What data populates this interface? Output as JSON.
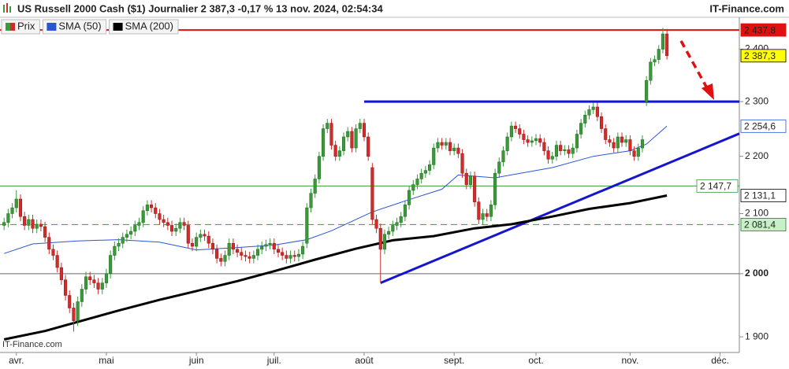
{
  "chart_data": {
    "type": "candlestick",
    "title": "US Russell 2000 Cash ($1) Journalier 2 387,3 -0,17 % 13 nov. 2024, 02:54:34",
    "brand": "IT-Finance.com",
    "watermark": "IT-Finance.com",
    "price_name": "Prix",
    "up_color": "#3a9a3a",
    "down_color": "#d42a2a",
    "last_label": "2 387,3",
    "last_label_bg": "#ffff00",
    "last_label_fg": "#000000",
    "log": true,
    "ylim": [
      1876,
      2463
    ],
    "yticks": [
      {
        "value": 1900,
        "label": "1 900"
      },
      {
        "value": 2000,
        "label": "2 000",
        "bold": true
      },
      {
        "value": 2100,
        "label": "2 100"
      },
      {
        "value": 2200,
        "label": "2 200"
      },
      {
        "value": 2300,
        "label": "2 300"
      },
      {
        "value": 2400,
        "label": "2 400"
      }
    ],
    "xlim": [
      -1,
      179.7
    ],
    "xticks": [
      {
        "value": 3,
        "label": "avr."
      },
      {
        "value": 25,
        "label": "mai"
      },
      {
        "value": 47,
        "label": "juin"
      },
      {
        "value": 66,
        "label": "juil."
      },
      {
        "value": 88,
        "label": "août"
      },
      {
        "value": 110,
        "label": "sept."
      },
      {
        "value": 130,
        "label": "oct."
      },
      {
        "value": 153,
        "label": "nov."
      },
      {
        "value": 175,
        "label": "déc."
      }
    ],
    "open": [
      2080,
      2085,
      2100,
      2110,
      2125,
      2095,
      2080,
      2090,
      2075,
      2082,
      2078,
      2060,
      2040,
      2030,
      2010,
      1990,
      1965,
      1945,
      1925,
      1955,
      1975,
      1995,
      1990,
      1985,
      1975,
      1985,
      2000,
      2030,
      2045,
      2050,
      2060,
      2065,
      2070,
      2080,
      2085,
      2105,
      2115,
      2110,
      2100,
      2090,
      2085,
      2080,
      2070,
      2075,
      2085,
      2080,
      2050,
      2045,
      2060,
      2065,
      2062,
      2050,
      2040,
      2025,
      2020,
      2030,
      2050,
      2040,
      2035,
      2030,
      2028,
      2025,
      2030,
      2040,
      2045,
      2048,
      2050,
      2040,
      2035,
      2030,
      2025,
      2030,
      2028,
      2032,
      2050,
      2110,
      2135,
      2160,
      2200,
      2250,
      2260,
      2220,
      2200,
      2210,
      2235,
      2245,
      2215,
      2250,
      2260,
      2235,
      2180,
      2090,
      2075,
      2040,
      2065,
      2070,
      2080,
      2085,
      2095,
      2115,
      2140,
      2150,
      2160,
      2170,
      2175,
      2185,
      2215,
      2225,
      2220,
      2225,
      2210,
      2215,
      2205,
      2170,
      2150,
      2165,
      2120,
      2090,
      2100,
      2095,
      2115,
      2170,
      2190,
      2210,
      2235,
      2255,
      2250,
      2240,
      2230,
      2225,
      2228,
      2232,
      2225,
      2210,
      2195,
      2200,
      2220,
      2210,
      2212,
      2205,
      2215,
      2240,
      2260,
      2275,
      2285,
      2290,
      2272,
      2250,
      2230,
      2225,
      2215,
      2235,
      2225,
      2230,
      2210,
      2200,
      2215,
      2300,
      2340,
      2375,
      2380,
      2400,
      2430
    ],
    "high": [
      2093,
      2108,
      2118,
      2140,
      2133,
      2103,
      2098,
      2098,
      2090,
      2090,
      2086,
      2068,
      2048,
      2038,
      2018,
      1998,
      1973,
      1953,
      1963,
      1983,
      2003,
      2003,
      1998,
      1993,
      1993,
      2008,
      2038,
      2053,
      2058,
      2068,
      2073,
      2078,
      2088,
      2093,
      2113,
      2123,
      2123,
      2118,
      2108,
      2098,
      2093,
      2088,
      2083,
      2093,
      2093,
      2088,
      2058,
      2068,
      2073,
      2073,
      2070,
      2058,
      2048,
      2033,
      2038,
      2058,
      2058,
      2048,
      2043,
      2038,
      2036,
      2038,
      2048,
      2053,
      2056,
      2058,
      2058,
      2048,
      2043,
      2038,
      2038,
      2038,
      2040,
      2053,
      2118,
      2143,
      2168,
      2208,
      2258,
      2268,
      2268,
      2228,
      2218,
      2243,
      2253,
      2253,
      2258,
      2268,
      2268,
      2243,
      2188,
      2098,
      2083,
      2073,
      2078,
      2088,
      2093,
      2103,
      2123,
      2148,
      2158,
      2168,
      2178,
      2183,
      2193,
      2223,
      2233,
      2233,
      2233,
      2233,
      2223,
      2223,
      2213,
      2178,
      2173,
      2173,
      2128,
      2108,
      2108,
      2123,
      2178,
      2198,
      2218,
      2243,
      2263,
      2263,
      2258,
      2248,
      2238,
      2236,
      2240,
      2240,
      2233,
      2218,
      2208,
      2228,
      2228,
      2220,
      2220,
      2223,
      2248,
      2268,
      2283,
      2293,
      2298,
      2298,
      2280,
      2258,
      2238,
      2233,
      2243,
      2243,
      2238,
      2238,
      2218,
      2223,
      2238,
      2348,
      2383,
      2388,
      2408,
      2442,
      2440
    ],
    "low": [
      2072,
      2077,
      2092,
      2102,
      2087,
      2072,
      2072,
      2067,
      2067,
      2070,
      2052,
      2032,
      2022,
      2002,
      1982,
      1957,
      1937,
      1908,
      1917,
      1947,
      1967,
      1982,
      1977,
      1967,
      1967,
      1977,
      1992,
      2022,
      2037,
      2042,
      2052,
      2057,
      2062,
      2072,
      2077,
      2097,
      2102,
      2092,
      2082,
      2077,
      2072,
      2062,
      2062,
      2067,
      2072,
      2042,
      2037,
      2037,
      2052,
      2054,
      2042,
      2032,
      2017,
      2012,
      2012,
      2022,
      2032,
      2027,
      2022,
      2020,
      2017,
      2017,
      2022,
      2032,
      2037,
      2040,
      2032,
      2027,
      2022,
      2017,
      2017,
      2020,
      2020,
      2024,
      2042,
      2102,
      2127,
      2152,
      2192,
      2242,
      2212,
      2192,
      2192,
      2202,
      2227,
      2207,
      2207,
      2242,
      2227,
      2192,
      2082,
      2067,
      1985,
      2032,
      2057,
      2062,
      2072,
      2077,
      2087,
      2107,
      2132,
      2142,
      2152,
      2162,
      2167,
      2177,
      2207,
      2212,
      2212,
      2202,
      2202,
      2197,
      2162,
      2142,
      2142,
      2112,
      2082,
      2082,
      2087,
      2087,
      2107,
      2162,
      2182,
      2202,
      2227,
      2242,
      2232,
      2222,
      2217,
      2217,
      2220,
      2217,
      2202,
      2187,
      2187,
      2192,
      2202,
      2202,
      2197,
      2197,
      2207,
      2232,
      2252,
      2267,
      2277,
      2264,
      2242,
      2222,
      2217,
      2207,
      2207,
      2217,
      2217,
      2202,
      2192,
      2192,
      2207,
      2292,
      2332,
      2367,
      2372,
      2392,
      2380
    ],
    "close": [
      2085,
      2100,
      2110,
      2125,
      2095,
      2080,
      2090,
      2075,
      2082,
      2078,
      2060,
      2040,
      2030,
      2010,
      1990,
      1965,
      1945,
      1925,
      1955,
      1975,
      1995,
      1990,
      1985,
      1975,
      1985,
      2000,
      2030,
      2045,
      2050,
      2060,
      2065,
      2070,
      2080,
      2085,
      2105,
      2115,
      2110,
      2100,
      2090,
      2085,
      2080,
      2070,
      2075,
      2085,
      2080,
      2050,
      2045,
      2060,
      2065,
      2062,
      2050,
      2040,
      2025,
      2020,
      2030,
      2050,
      2040,
      2035,
      2030,
      2028,
      2025,
      2030,
      2040,
      2045,
      2048,
      2050,
      2040,
      2035,
      2030,
      2025,
      2030,
      2028,
      2032,
      2045,
      2110,
      2135,
      2160,
      2200,
      2250,
      2260,
      2220,
      2200,
      2210,
      2235,
      2245,
      2215,
      2250,
      2260,
      2235,
      2200,
      2090,
      2075,
      2040,
      2065,
      2070,
      2080,
      2085,
      2095,
      2115,
      2140,
      2150,
      2160,
      2170,
      2175,
      2185,
      2215,
      2225,
      2220,
      2225,
      2210,
      2215,
      2205,
      2170,
      2150,
      2165,
      2120,
      2090,
      2100,
      2095,
      2115,
      2170,
      2190,
      2210,
      2235,
      2255,
      2250,
      2240,
      2230,
      2225,
      2228,
      2232,
      2225,
      2210,
      2195,
      2200,
      2220,
      2210,
      2212,
      2205,
      2215,
      2240,
      2260,
      2275,
      2285,
      2290,
      2272,
      2250,
      2230,
      2225,
      2215,
      2235,
      2225,
      2230,
      2210,
      2200,
      2215,
      2230,
      2340,
      2375,
      2380,
      2400,
      2430,
      2387.3
    ],
    "series": [
      {
        "name": "SMA (50)",
        "color": "#2a55d6",
        "width": 1,
        "x": [
          0,
          7,
          18,
          28,
          38,
          47,
          57,
          66,
          74,
          80,
          90,
          99,
          107,
          111,
          120,
          134,
          144,
          153,
          157,
          162
        ],
        "values": [
          2033,
          2049,
          2054,
          2056,
          2052,
          2039,
          2043,
          2047,
          2056,
          2071,
          2103,
          2124,
          2142,
          2167,
          2162,
          2180,
          2200,
          2210,
          2222,
          2254.6
        ],
        "last_label": "2 254,6",
        "last_label_bg": "#ffffff",
        "last_label_fg": "#2a55d6"
      },
      {
        "name": "SMA (200)",
        "color": "#000000",
        "width": 3,
        "x": [
          0,
          10,
          19,
          28,
          38,
          47,
          57,
          66,
          76,
          86,
          95,
          105,
          115,
          124,
          134,
          143,
          153,
          162
        ],
        "values": [
          1896,
          1909,
          1925,
          1941,
          1958,
          1972,
          1988,
          2004,
          2023,
          2041,
          2055,
          2062,
          2075,
          2082,
          2095,
          2108,
          2118,
          2131.1
        ],
        "last_label": "2 131,1",
        "last_label_bg": "#ffffff",
        "last_label_fg": "#000000"
      }
    ],
    "lines": [
      {
        "x": [
          88,
          179.7
        ],
        "values": [
          2300,
          2300
        ],
        "color": "#1515d0"
      },
      {
        "x": [
          92,
          179.7
        ],
        "values": [
          1985,
          2241
        ],
        "color": "#1515d0"
      }
    ],
    "levels": [
      {
        "value": 2437.8,
        "label": "2 437,8",
        "color": "#e01010",
        "width": 2,
        "label_bg": "#e01010",
        "label_fg": "#ffffff"
      },
      {
        "value": 2147.7,
        "label": "2 147,7",
        "color": "#3a9a3a",
        "width": 1,
        "label_bg": "#ffffff",
        "label_fg": "#3a9a3a",
        "inside": true
      },
      {
        "value": 2081.4,
        "label": "2 081,4",
        "color": "#3a9a3a",
        "width": 1,
        "dashed": true,
        "label_bg": "#c8f0c8",
        "label_fg": "#2a7a2a"
      },
      {
        "value": 2000,
        "color": "#666666",
        "width": 1
      }
    ]
  }
}
